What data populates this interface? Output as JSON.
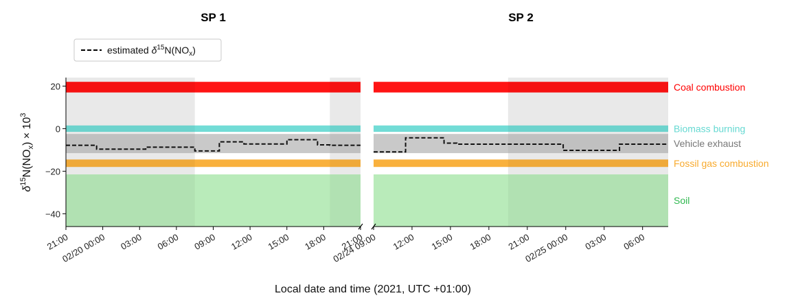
{
  "chart_data": {
    "type": "area",
    "xlabel": "Local date and time (2021, UTC +01:00)",
    "ylabel": "δ15N(NOx) × 10^3",
    "ylim": [
      -46,
      24
    ],
    "y_ticks": [
      20,
      0,
      -20,
      -40
    ],
    "legend": {
      "placement": "top-left",
      "entries": [
        {
          "name": "estimated δ15N(NOx)",
          "style": "black dashed"
        }
      ]
    },
    "sources": [
      {
        "name": "Coal combustion",
        "range": [
          17,
          22
        ],
        "color": "#ff0000"
      },
      {
        "name": "Biomass burning",
        "range": [
          -1.5,
          1.5
        ],
        "color": "#66d9d2"
      },
      {
        "name": "Vehicle exhaust",
        "range": [
          -11.5,
          -2.5
        ],
        "color": "#c4c4c4",
        "label_color": "#777777"
      },
      {
        "name": "Fossil gas combustion",
        "range": [
          -18,
          -14.5
        ],
        "color": "#f8aa2d"
      },
      {
        "name": "Soil",
        "range": [
          -46,
          -21.5
        ],
        "color": "#b3e9b4",
        "label_color": "#2fb84f"
      }
    ],
    "panels": [
      {
        "title": "SP 1",
        "x_ticks": [
          "21:00",
          "02/20 00:00",
          "03:00",
          "06:00",
          "09:00",
          "12:00",
          "15:00",
          "18:00",
          "21:00"
        ],
        "x_tick_hours": [
          0,
          3,
          6,
          9,
          12,
          15,
          18,
          21,
          24
        ],
        "xlim_hours": [
          0,
          24
        ],
        "night_shading_hours": [
          [
            0,
            10.5
          ],
          [
            21.5,
            24
          ]
        ],
        "series": {
          "name": "estimated δ15N(NOx)",
          "style": "step",
          "x_hours": [
            0,
            2.5,
            2.5,
            6.5,
            6.5,
            10.5,
            10.5,
            12.5,
            12.5,
            14.5,
            14.5,
            18,
            18,
            20.5,
            20.5,
            21.5,
            21.5,
            24
          ],
          "y": [
            -7.8,
            -7.8,
            -9.6,
            -9.6,
            -8.7,
            -8.7,
            -10.5,
            -10.5,
            -6.2,
            -6.2,
            -7.2,
            -7.2,
            -5.2,
            -5.2,
            -7.6,
            -7.6,
            -7.8,
            -7.8
          ]
        }
      },
      {
        "title": "SP 2",
        "x_ticks": [
          "02/24 09:00",
          "12:00",
          "15:00",
          "18:00",
          "21:00",
          "02/25 00:00",
          "03:00",
          "06:00"
        ],
        "x_tick_hours": [
          0,
          3,
          6,
          9,
          12,
          15,
          18,
          21
        ],
        "xlim_hours": [
          0,
          23
        ],
        "night_shading_hours": [
          [
            10.5,
            23
          ]
        ],
        "series": {
          "name": "estimated δ15N(NOx)",
          "style": "step",
          "x_hours": [
            0,
            2.5,
            2.5,
            5.5,
            5.5,
            6.5,
            6.5,
            14.8,
            14.8,
            19.2,
            19.2,
            23
          ],
          "y": [
            -10.9,
            -10.9,
            -4.3,
            -4.3,
            -6.8,
            -6.8,
            -7.3,
            -7.3,
            -10.2,
            -10.2,
            -7.3,
            -7.3
          ]
        }
      }
    ]
  }
}
